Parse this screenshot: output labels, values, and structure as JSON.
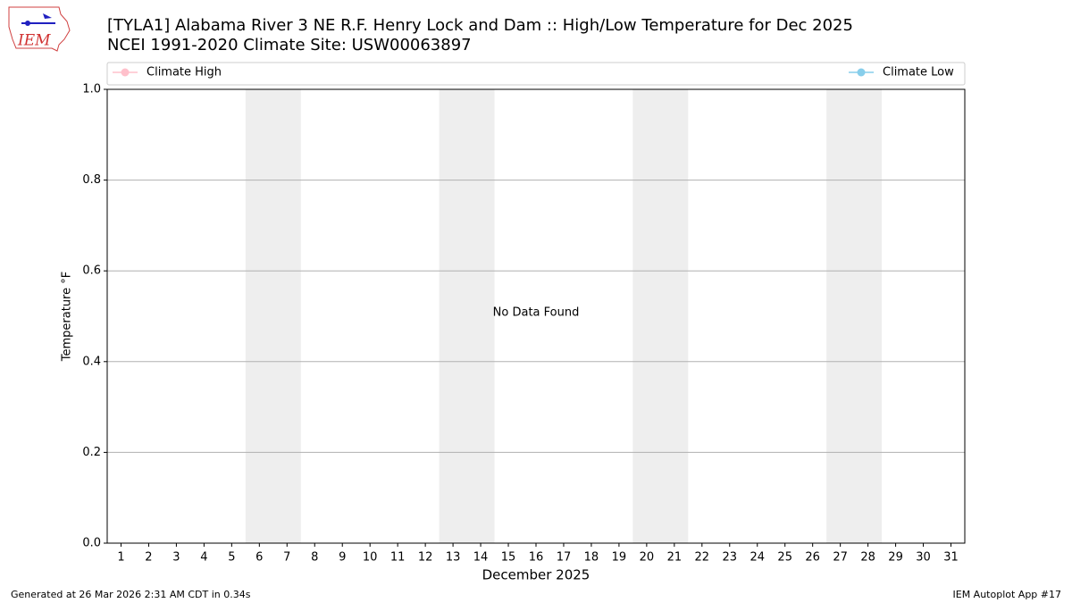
{
  "chart_data": {
    "type": "line",
    "title": "[TYLA1] Alabama River 3 NE R.F. Henry Lock and Dam :: High/Low Temperature for Dec 2025",
    "subtitle": "NCEI 1991-2020 Climate Site: USW00063897",
    "logo_text": "IEM",
    "xlabel": "December 2025",
    "ylabel": "Temperature °F",
    "annotation": "No Data Found",
    "categories": [
      "1",
      "2",
      "3",
      "4",
      "5",
      "6",
      "7",
      "8",
      "9",
      "10",
      "11",
      "12",
      "13",
      "14",
      "15",
      "16",
      "17",
      "18",
      "19",
      "20",
      "21",
      "22",
      "23",
      "24",
      "25",
      "26",
      "27",
      "28",
      "29",
      "30",
      "31"
    ],
    "series": [
      {
        "name": "Climate High",
        "color": "#ffc0cb",
        "values": [
          null,
          null,
          null,
          null,
          null,
          null,
          null,
          null,
          null,
          null,
          null,
          null,
          null,
          null,
          null,
          null,
          null,
          null,
          null,
          null,
          null,
          null,
          null,
          null,
          null,
          null,
          null,
          null,
          null,
          null,
          null
        ]
      },
      {
        "name": "Climate Low",
        "color": "#87ceeb",
        "values": [
          null,
          null,
          null,
          null,
          null,
          null,
          null,
          null,
          null,
          null,
          null,
          null,
          null,
          null,
          null,
          null,
          null,
          null,
          null,
          null,
          null,
          null,
          null,
          null,
          null,
          null,
          null,
          null,
          null,
          null,
          null
        ]
      }
    ],
    "ylim": [
      0,
      1
    ],
    "yticks": [
      {
        "value": 0,
        "label": "0.0"
      },
      {
        "value": 0.2,
        "label": "0.2"
      },
      {
        "value": 0.4,
        "label": "0.4"
      },
      {
        "value": 0.6,
        "label": "0.6"
      },
      {
        "value": 0.8,
        "label": "0.8"
      },
      {
        "value": 1,
        "label": "1.0"
      }
    ],
    "grid": true,
    "footer_left": "Generated at 26 Mar 2026 2:31 AM CDT in 0.34s",
    "footer_right": "IEM Autoplot App #17"
  }
}
